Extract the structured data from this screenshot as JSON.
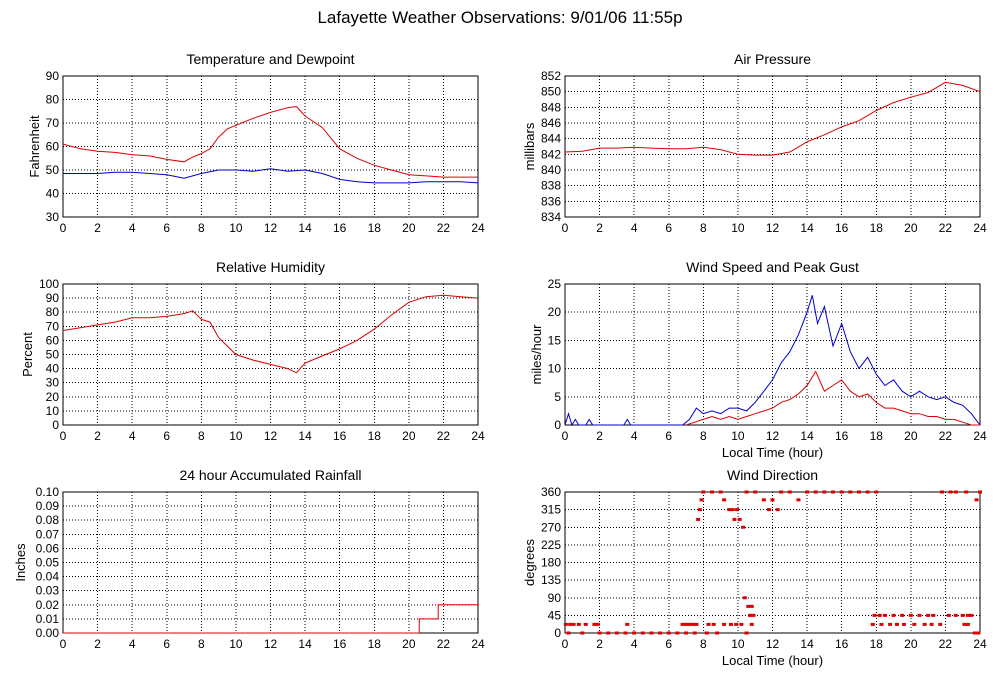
{
  "page": {
    "title": "Lafayette Weather Observations: 9/01/06 11:55p"
  },
  "colors": {
    "red": "#dd0000",
    "blue": "#0000cc"
  },
  "chart_data": [
    {
      "id": "temp",
      "type": "line",
      "title": "Temperature and Dewpoint",
      "ylabel": "Fahrenheit",
      "xlabel": "",
      "xlim": [
        0,
        24
      ],
      "ylim": [
        30,
        90
      ],
      "xticks": [
        0,
        2,
        4,
        6,
        8,
        10,
        12,
        14,
        16,
        18,
        20,
        22,
        24
      ],
      "yticks": [
        30,
        40,
        50,
        60,
        70,
        80,
        90
      ],
      "series": [
        {
          "color": "#dd0000",
          "x": [
            0,
            1,
            2,
            3,
            4,
            5,
            6,
            7,
            7.5,
            8,
            8.5,
            9,
            9.5,
            10,
            11,
            12,
            13,
            13.5,
            14,
            15,
            16,
            17,
            18,
            19,
            20,
            21,
            22,
            23,
            24
          ],
          "y": [
            61,
            59,
            58,
            57.5,
            56.5,
            56,
            54.5,
            53.5,
            55.5,
            57,
            59,
            64,
            67.5,
            69,
            72,
            74.5,
            76.5,
            77,
            73,
            68,
            59,
            55,
            52,
            50,
            48,
            47.5,
            47,
            47,
            47
          ]
        },
        {
          "color": "#0000cc",
          "x": [
            0,
            1,
            2,
            3,
            4,
            5,
            6,
            7,
            8,
            9,
            10,
            11,
            12,
            13,
            14,
            15,
            16,
            17,
            18,
            19,
            20,
            21,
            22,
            23,
            24
          ],
          "y": [
            48.5,
            48.5,
            48.5,
            49,
            49,
            48.5,
            48,
            46.5,
            48.5,
            50,
            50,
            49.5,
            50.5,
            49.5,
            50,
            48.5,
            46,
            45,
            44.5,
            44.5,
            44.5,
            45,
            45,
            45,
            44.5
          ]
        }
      ]
    },
    {
      "id": "press",
      "type": "line",
      "title": "Air Pressure",
      "ylabel": "millibars",
      "xlabel": "",
      "xlim": [
        0,
        24
      ],
      "ylim": [
        834,
        852
      ],
      "xticks": [
        0,
        2,
        4,
        6,
        8,
        10,
        12,
        14,
        16,
        18,
        20,
        22,
        24
      ],
      "yticks": [
        834,
        836,
        838,
        840,
        842,
        844,
        846,
        848,
        850,
        852
      ],
      "series": [
        {
          "color": "#dd0000",
          "x": [
            0,
            1,
            2,
            3,
            4,
            5,
            6,
            7,
            8,
            9,
            10,
            11,
            12,
            13,
            14,
            15,
            16,
            17,
            18,
            19,
            20,
            21,
            22,
            23,
            24
          ],
          "y": [
            842.3,
            842.4,
            842.8,
            842.8,
            842.9,
            842.8,
            842.7,
            842.7,
            842.9,
            842.6,
            842.0,
            841.9,
            841.9,
            842.3,
            843.6,
            844.5,
            845.5,
            846.3,
            847.6,
            848.6,
            849.3,
            849.9,
            851.2,
            850.8,
            850.0
          ]
        }
      ]
    },
    {
      "id": "rh",
      "type": "line",
      "title": "Relative Humidity",
      "ylabel": "Percent",
      "xlabel": "",
      "xlim": [
        0,
        24
      ],
      "ylim": [
        0,
        100
      ],
      "xticks": [
        0,
        2,
        4,
        6,
        8,
        10,
        12,
        14,
        16,
        18,
        20,
        22,
        24
      ],
      "yticks": [
        0,
        10,
        20,
        30,
        40,
        50,
        60,
        70,
        80,
        90,
        100
      ],
      "series": [
        {
          "color": "#dd0000",
          "x": [
            0,
            1,
            2,
            3,
            4,
            5,
            6,
            7,
            7.5,
            8,
            8.5,
            9,
            9.5,
            10,
            11,
            12,
            13,
            13.5,
            14,
            15,
            16,
            17,
            18,
            19,
            20,
            21,
            22,
            23,
            24
          ],
          "y": [
            67,
            69,
            71,
            73,
            76,
            76,
            77,
            79,
            81,
            75,
            73,
            62,
            56,
            50,
            46,
            43,
            40,
            37,
            44,
            49,
            54,
            60,
            68,
            78,
            87,
            91,
            92,
            91,
            90
          ]
        }
      ]
    },
    {
      "id": "wind",
      "type": "line",
      "title": "Wind Speed and Peak Gust",
      "ylabel": "miles/hour",
      "xlabel": "Local Time (hour)",
      "xlim": [
        0,
        24
      ],
      "ylim": [
        0,
        25
      ],
      "xticks": [
        0,
        2,
        4,
        6,
        8,
        10,
        12,
        14,
        16,
        18,
        20,
        22,
        24
      ],
      "yticks": [
        0,
        5,
        10,
        15,
        20,
        25
      ],
      "series": [
        {
          "color": "#0000cc",
          "x": [
            0,
            0.2,
            0.4,
            0.6,
            0.8,
            1.0,
            1.2,
            1.4,
            1.6,
            1.8,
            3.4,
            3.6,
            3.8,
            6.8,
            7.2,
            7.6,
            8.0,
            8.5,
            9,
            9.5,
            10,
            10.5,
            11,
            11.5,
            12,
            12.5,
            13,
            13.5,
            14,
            14.3,
            14.6,
            15,
            15.5,
            16,
            16.5,
            17,
            17.5,
            18,
            18.5,
            19,
            19.5,
            20,
            20.5,
            21,
            21.5,
            22,
            22.5,
            23,
            23.5,
            24
          ],
          "y": [
            0,
            2,
            0,
            1,
            0,
            0,
            0,
            1,
            0,
            0,
            0,
            1,
            0,
            0,
            1,
            3,
            2,
            2.5,
            2,
            3,
            3,
            2.5,
            4,
            6,
            8,
            11,
            13,
            16,
            20,
            23,
            18,
            21,
            14,
            18,
            13,
            10,
            12,
            9,
            7,
            8,
            6,
            5,
            6,
            5,
            4.5,
            5,
            4,
            3.5,
            2,
            0
          ]
        },
        {
          "color": "#dd0000",
          "x": [
            7,
            7.5,
            8,
            8.5,
            9,
            9.5,
            10,
            10.5,
            11,
            11.5,
            12,
            12.5,
            13,
            13.5,
            14,
            14.5,
            15,
            15.5,
            16,
            16.5,
            17,
            17.5,
            18,
            18.5,
            19,
            19.5,
            20,
            20.5,
            21,
            21.5,
            22,
            22.5,
            23,
            23.5,
            24
          ],
          "y": [
            0,
            0.5,
            1,
            1.5,
            1,
            1.5,
            1,
            1.5,
            2,
            2.5,
            3,
            4,
            4.5,
            5.5,
            7,
            9.5,
            6,
            7,
            8,
            6,
            5,
            5.5,
            4,
            3,
            3,
            2.5,
            2,
            2,
            1.5,
            1.5,
            1,
            1,
            0.5,
            0,
            0
          ]
        }
      ]
    },
    {
      "id": "rain",
      "type": "line",
      "title": "24 hour Accumulated Rainfall",
      "ylabel": "Inches",
      "xlabel": "",
      "xlim": [
        0,
        24
      ],
      "ylim": [
        0,
        0.1
      ],
      "xticks": [
        0,
        2,
        4,
        6,
        8,
        10,
        12,
        14,
        16,
        18,
        20,
        22,
        24
      ],
      "yticks": [
        0.0,
        0.01,
        0.02,
        0.03,
        0.04,
        0.05,
        0.06,
        0.07,
        0.08,
        0.09,
        0.1
      ],
      "ytick_labels": [
        "0.00",
        "0.01",
        "0.02",
        "0.03",
        "0.04",
        "0.05",
        "0.06",
        "0.07",
        "0.08",
        "0.09",
        "0.10"
      ],
      "series": [
        {
          "color": "#dd0000",
          "step": true,
          "x": [
            0,
            20.6,
            20.6,
            21.7,
            21.7,
            24
          ],
          "y": [
            0,
            0,
            0.01,
            0.01,
            0.02,
            0.02
          ]
        }
      ]
    },
    {
      "id": "wdir",
      "type": "scatter",
      "title": "Wind Direction",
      "ylabel": "degrees",
      "xlabel": "Local Time (hour)",
      "xlim": [
        0,
        24
      ],
      "ylim": [
        0,
        360
      ],
      "xticks": [
        0,
        2,
        4,
        6,
        8,
        10,
        12,
        14,
        16,
        18,
        20,
        22,
        24
      ],
      "yticks": [
        0,
        45,
        90,
        135,
        180,
        225,
        270,
        315,
        360
      ],
      "color": "#dd0000",
      "points": [
        [
          0.05,
          22
        ],
        [
          0.3,
          22
        ],
        [
          0.5,
          22
        ],
        [
          0.8,
          22
        ],
        [
          1.2,
          22
        ],
        [
          1.7,
          22
        ],
        [
          1.9,
          22
        ],
        [
          3.6,
          22
        ],
        [
          6.8,
          22
        ],
        [
          7.0,
          22
        ],
        [
          7.2,
          22
        ],
        [
          7.4,
          22
        ],
        [
          7.6,
          22
        ],
        [
          8.3,
          22
        ],
        [
          8.6,
          22
        ],
        [
          9.2,
          22
        ],
        [
          9.6,
          22
        ],
        [
          9.9,
          22
        ],
        [
          10.2,
          22
        ],
        [
          0.2,
          0
        ],
        [
          1.0,
          0
        ],
        [
          2.0,
          0
        ],
        [
          2.5,
          0
        ],
        [
          3.0,
          0
        ],
        [
          3.5,
          0
        ],
        [
          4.0,
          0
        ],
        [
          4.5,
          0
        ],
        [
          5.0,
          0
        ],
        [
          5.5,
          0
        ],
        [
          6.0,
          0
        ],
        [
          6.5,
          0
        ],
        [
          7.0,
          0
        ],
        [
          7.5,
          0
        ],
        [
          8.2,
          0
        ],
        [
          8.8,
          0
        ],
        [
          7.7,
          290
        ],
        [
          7.8,
          315
        ],
        [
          7.9,
          340
        ],
        [
          8.0,
          360
        ],
        [
          8.5,
          360
        ],
        [
          9.0,
          360
        ],
        [
          9.2,
          340
        ],
        [
          9.5,
          315
        ],
        [
          9.7,
          315
        ],
        [
          9.8,
          290
        ],
        [
          9.95,
          315
        ],
        [
          10.1,
          290
        ],
        [
          10.3,
          270
        ],
        [
          10.5,
          360
        ],
        [
          11.0,
          360
        ],
        [
          11.5,
          340
        ],
        [
          11.8,
          315
        ],
        [
          12.0,
          340
        ],
        [
          12.3,
          315
        ],
        [
          10.4,
          90
        ],
        [
          10.6,
          68
        ],
        [
          10.8,
          68
        ],
        [
          10.7,
          45
        ],
        [
          10.8,
          22
        ],
        [
          10.5,
          0
        ],
        [
          10.9,
          45
        ],
        [
          12.5,
          360
        ],
        [
          13.0,
          360
        ],
        [
          13.5,
          340
        ],
        [
          14,
          360
        ],
        [
          14.5,
          360
        ],
        [
          15,
          360
        ],
        [
          15.5,
          360
        ],
        [
          16,
          360
        ],
        [
          16.5,
          360
        ],
        [
          17,
          360
        ],
        [
          17.5,
          360
        ],
        [
          18,
          360
        ],
        [
          17.9,
          45
        ],
        [
          18.2,
          45
        ],
        [
          18.5,
          45
        ],
        [
          19,
          45
        ],
        [
          19.5,
          45
        ],
        [
          20,
          45
        ],
        [
          20.5,
          45
        ],
        [
          21,
          45
        ],
        [
          21.3,
          45
        ],
        [
          22.2,
          45
        ],
        [
          22.6,
          45
        ],
        [
          23.0,
          45
        ],
        [
          23.3,
          45
        ],
        [
          23.5,
          45
        ],
        [
          17.8,
          22
        ],
        [
          18.3,
          22
        ],
        [
          18.8,
          22
        ],
        [
          19.2,
          22
        ],
        [
          19.6,
          22
        ],
        [
          20.2,
          22
        ],
        [
          20.8,
          22
        ],
        [
          21.2,
          22
        ],
        [
          21.7,
          22
        ],
        [
          23.1,
          22
        ],
        [
          23.3,
          22
        ],
        [
          21.8,
          360
        ],
        [
          22.3,
          360
        ],
        [
          22.6,
          360
        ],
        [
          23.2,
          360
        ],
        [
          23.8,
          340
        ],
        [
          24,
          360
        ],
        [
          23.9,
          0
        ],
        [
          23.7,
          0
        ]
      ]
    }
  ]
}
